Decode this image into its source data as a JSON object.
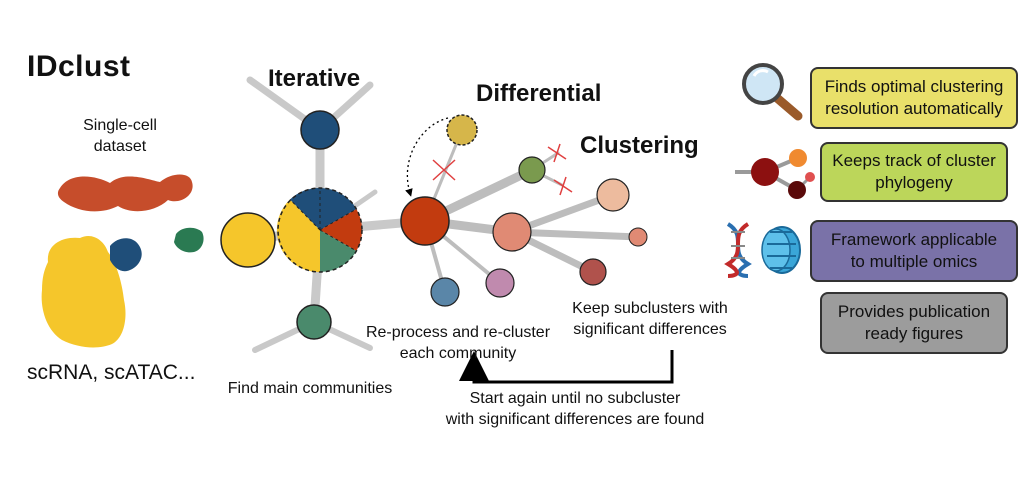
{
  "title": "IDclust",
  "dataset": {
    "label_line1": "Single-cell",
    "label_line2": "dataset",
    "types": "scRNA, scATAC..."
  },
  "headings": {
    "iterative": "Iterative",
    "differential": "Differential",
    "clustering": "Clustering"
  },
  "steps": {
    "find_main": "Find main communities",
    "reprocess_line1": "Re-process and re-cluster",
    "reprocess_line2": "each community",
    "keep_line1": "Keep subclusters with",
    "keep_line2": "significant differences",
    "start_again_line1": "Start again until no subcluster",
    "start_again_line2": "with significant differences are found"
  },
  "features": [
    {
      "line1": "Finds optimal clustering",
      "line2": "resolution automatically",
      "color": "#e9e06a",
      "icon": "magnifier-icon"
    },
    {
      "line1": "Keeps track of cluster",
      "line2": "phylogeny",
      "color": "#bcd65a",
      "icon": "phylogeny-icon"
    },
    {
      "line1": "Framework applicable",
      "line2": "to multiple omics",
      "color": "#7a72a8",
      "icon": "dna-nucleosome-icon"
    },
    {
      "line1": "Provides publication",
      "line2": "ready figures",
      "color": "#9c9c9c",
      "icon": ""
    }
  ],
  "colors": {
    "yellow": "#f5c62b",
    "navy": "#1f4e79",
    "red": "#c23b0f",
    "teal": "#4a8a6c",
    "salmon": "#e08a74",
    "peach": "#edbb9e",
    "olive": "#7a9a4e",
    "mustard": "#d6b64a",
    "steel": "#5a86a8",
    "mauve": "#c08aae",
    "brick": "#b0524c",
    "green_cluster": "#2a7a52",
    "red_cluster": "#c03a14"
  }
}
